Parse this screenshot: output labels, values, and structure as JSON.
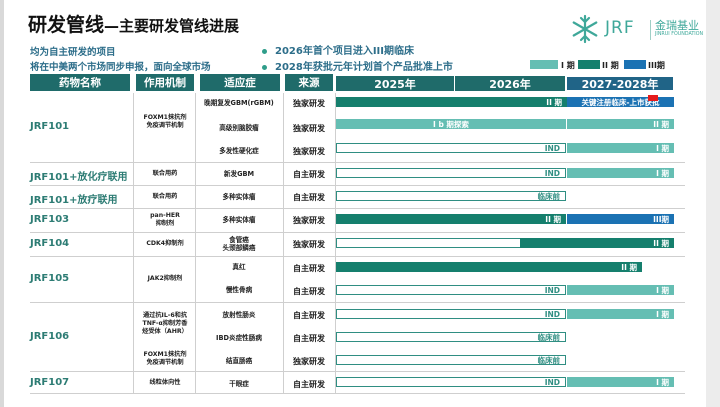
{
  "colors": {
    "phase1": "#65beb3",
    "phase2": "#157f6d",
    "phase3": "#1b72b3",
    "header": "#1f6b6a",
    "drug_text": "#2d7c74",
    "bullet": "#2f9d8a",
    "note_text": "#2d6e8a",
    "red_mark": "#e61b1b"
  },
  "title": {
    "main": "研发管线",
    "sub": "—主要研发管线进展"
  },
  "notes": [
    "均为自主研发的项目",
    "将在中美两个市场同步申报，面向全球市场"
  ],
  "bullets": [
    "2026年首个项目进入III期临床",
    "2028年获批元年计划首个产品批准上市"
  ],
  "logo": {
    "mark_icon": "snowflake-logo-icon",
    "name": "JRF",
    "cn": "金瑞基业",
    "en": "JINRUI FOUNDATION"
  },
  "legend": [
    {
      "label": "I 期"
    },
    {
      "label": "II 期"
    },
    {
      "label": "III期"
    }
  ],
  "header": {
    "drug": "药物名称",
    "mech": "作用机制",
    "ind": "适应症",
    "src": "来源",
    "years": [
      "2025年",
      "2026年",
      "2027-2028年"
    ]
  },
  "drugs": [
    {
      "name": "JRF101"
    },
    {
      "name": "JRF101+放化疗联用"
    },
    {
      "name": "JRF101+放疗联用"
    },
    {
      "name": "JRF103"
    },
    {
      "name": "JRF104"
    },
    {
      "name": "JRF105"
    },
    {
      "name": "JRF106"
    },
    {
      "name": "JRF107"
    }
  ],
  "mechs": [
    {
      "text": "FOXM1抹抗剂\n免疫调节机制"
    },
    {
      "text": "联合用药"
    },
    {
      "text": "联合用药"
    },
    {
      "text": "pan-HER\n抑制剂"
    },
    {
      "text": "CDK4抑制剂"
    },
    {
      "text": "JAK2抑制剂"
    },
    {
      "text": "通过抗IL-6和抗\nTNF-α抑制芳香\n烃受体（AHR）"
    },
    {
      "text": "FOXM1抹抗剂\n免疫调节机制"
    },
    {
      "text": "线粒体向性"
    }
  ],
  "rows": [
    {
      "ind": "晚期复发GBM(rGBM)",
      "src": "独家研发",
      "bars": [
        {
          "label": "II 期"
        },
        {
          "label": "关键注册临床-上市获批"
        }
      ]
    },
    {
      "ind": "高级别脑胶瘤",
      "src": "独家研发",
      "bars": [
        {
          "label": "I b 期探索"
        },
        {
          "label": "II 期"
        }
      ]
    },
    {
      "ind": "多发性硬化症",
      "src": "独家研发",
      "bars": [
        {
          "label": "IND"
        },
        {
          "label": "I 期"
        }
      ]
    },
    {
      "ind": "新发GBM",
      "src": "自主研发",
      "bars": [
        {
          "label": "IND"
        },
        {
          "label": "I 期"
        }
      ]
    },
    {
      "ind": "多种实体瘤",
      "src": "自主研发",
      "bars": [
        {
          "label": "临床前"
        }
      ]
    },
    {
      "ind": "多种实体瘤",
      "src": "独家研发",
      "bars": [
        {
          "label": "II 期"
        },
        {
          "label": "III期"
        }
      ]
    },
    {
      "ind": "食管癌\n头颈部鳞癌",
      "src": "独家研发",
      "bars": [
        {
          "label": "联用IND"
        },
        {
          "label": "II 期"
        }
      ]
    },
    {
      "ind": "真红",
      "src": "自主研发",
      "bars": [
        {
          "label": "II 期"
        }
      ]
    },
    {
      "ind": "慢性骨病",
      "src": "自主研发",
      "bars": [
        {
          "label": "IND"
        },
        {
          "label": "I 期"
        }
      ]
    },
    {
      "ind": "放射性肠炎",
      "src": "自主研发",
      "bars": [
        {
          "label": "IND"
        },
        {
          "label": "I 期"
        }
      ]
    },
    {
      "ind": "IBD炎症性肠病",
      "src": "自主研发",
      "bars": [
        {
          "label": "临床前"
        }
      ]
    },
    {
      "ind": "结直肠癌",
      "src": "独家研发",
      "bars": [
        {
          "label": "临床前"
        }
      ]
    },
    {
      "ind": "干眼症",
      "src": "自主研发",
      "bars": [
        {
          "label": "IND"
        },
        {
          "label": "I 期"
        }
      ]
    }
  ]
}
